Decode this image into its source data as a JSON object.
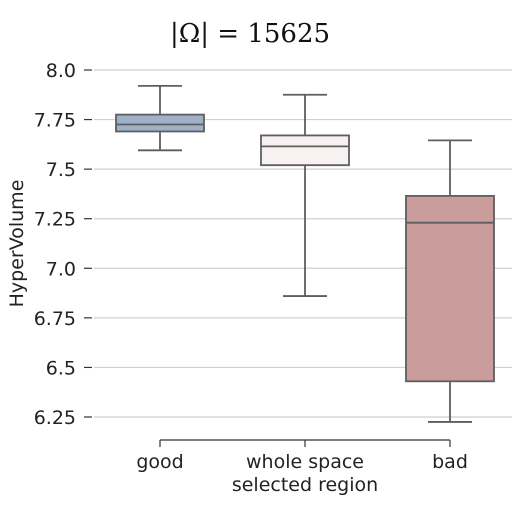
{
  "chart_data": {
    "type": "box",
    "title": "|Ω| = 15625",
    "xlabel": "selected region",
    "ylabel": "HyperVolume",
    "ylim": [
      6.2,
      8.05
    ],
    "yticks": [
      8.0,
      7.75,
      7.5,
      7.25,
      7.0,
      6.75,
      6.5,
      6.25
    ],
    "ytick_labels": [
      "8.0",
      "7.75",
      "7.5",
      "7.25",
      "7.0",
      "6.75",
      "6.5",
      "6.25"
    ],
    "grid": true,
    "categories": [
      "good",
      "whole space",
      "bad"
    ],
    "boxes": [
      {
        "category": "good",
        "min": 7.595,
        "q1": 7.69,
        "median": 7.725,
        "q3": 7.775,
        "max": 7.92,
        "color": "#9fb1c8"
      },
      {
        "category": "whole space",
        "min": 6.86,
        "q1": 7.52,
        "median": 7.615,
        "q3": 7.67,
        "max": 7.875,
        "color": "#f7f1f1"
      },
      {
        "category": "bad",
        "min": 6.225,
        "q1": 6.43,
        "median": 7.23,
        "q3": 7.365,
        "max": 7.645,
        "color": "#cb9c9c"
      }
    ]
  }
}
